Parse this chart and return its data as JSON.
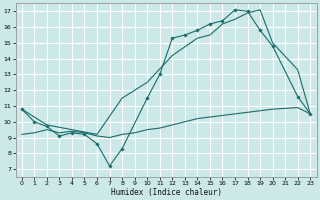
{
  "xlabel": "Humidex (Indice chaleur)",
  "bg_color": "#cce8e8",
  "grid_color": "#ffffff",
  "line_color": "#1a6b6b",
  "xlim": [
    -0.5,
    23.5
  ],
  "ylim": [
    6.5,
    17.5
  ],
  "xticks": [
    0,
    1,
    2,
    3,
    4,
    5,
    6,
    7,
    8,
    9,
    10,
    11,
    12,
    13,
    14,
    15,
    16,
    17,
    18,
    19,
    20,
    21,
    22,
    23
  ],
  "yticks": [
    7,
    8,
    9,
    10,
    11,
    12,
    13,
    14,
    15,
    16,
    17
  ],
  "line1_x": [
    0,
    1,
    2,
    3,
    4,
    5,
    6,
    7,
    8,
    10,
    11,
    12,
    13,
    14,
    15,
    16,
    17,
    18,
    19,
    20,
    22,
    23
  ],
  "line1_y": [
    10.8,
    10.0,
    9.7,
    9.1,
    9.3,
    9.2,
    8.6,
    7.2,
    8.3,
    11.5,
    13.0,
    15.3,
    15.5,
    15.8,
    16.2,
    16.4,
    17.1,
    17.0,
    15.8,
    14.8,
    11.6,
    10.5
  ],
  "line2_x": [
    0,
    2,
    4,
    6,
    8,
    10,
    12,
    14,
    15,
    16,
    17,
    18,
    19,
    20,
    22,
    23
  ],
  "line2_y": [
    10.8,
    9.8,
    9.5,
    9.2,
    11.5,
    12.5,
    14.2,
    15.3,
    15.5,
    16.2,
    16.5,
    16.9,
    17.1,
    15.0,
    13.3,
    10.5
  ],
  "line3_x": [
    0,
    1,
    2,
    3,
    4,
    5,
    6,
    7,
    8,
    9,
    10,
    11,
    12,
    13,
    14,
    15,
    16,
    17,
    18,
    19,
    20,
    21,
    22,
    23
  ],
  "line3_y": [
    9.2,
    9.3,
    9.5,
    9.3,
    9.4,
    9.3,
    9.1,
    9.0,
    9.2,
    9.3,
    9.5,
    9.6,
    9.8,
    10.0,
    10.2,
    10.3,
    10.4,
    10.5,
    10.6,
    10.7,
    10.8,
    10.85,
    10.9,
    10.5
  ]
}
